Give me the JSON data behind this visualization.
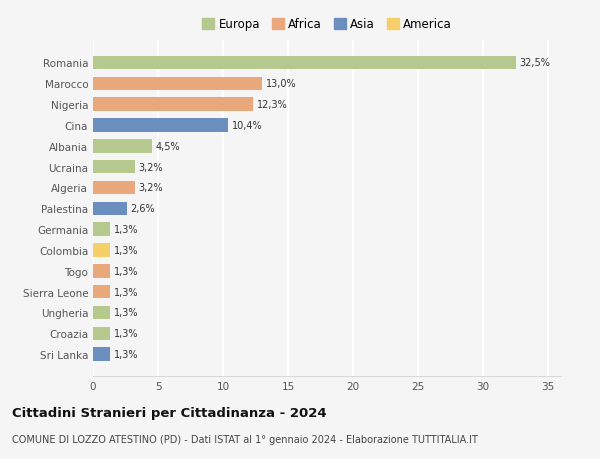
{
  "categories": [
    "Romania",
    "Marocco",
    "Nigeria",
    "Cina",
    "Albania",
    "Ucraina",
    "Algeria",
    "Palestina",
    "Germania",
    "Colombia",
    "Togo",
    "Sierra Leone",
    "Ungheria",
    "Croazia",
    "Sri Lanka"
  ],
  "values": [
    32.5,
    13.0,
    12.3,
    10.4,
    4.5,
    3.2,
    3.2,
    2.6,
    1.3,
    1.3,
    1.3,
    1.3,
    1.3,
    1.3,
    1.3
  ],
  "labels": [
    "32,5%",
    "13,0%",
    "12,3%",
    "10,4%",
    "4,5%",
    "3,2%",
    "3,2%",
    "2,6%",
    "1,3%",
    "1,3%",
    "1,3%",
    "1,3%",
    "1,3%",
    "1,3%",
    "1,3%"
  ],
  "continents": [
    "Europa",
    "Africa",
    "Africa",
    "Asia",
    "Europa",
    "Europa",
    "Africa",
    "Asia",
    "Europa",
    "America",
    "Africa",
    "Africa",
    "Europa",
    "Europa",
    "Asia"
  ],
  "continent_colors": {
    "Europa": "#b5c98e",
    "Africa": "#e8a87c",
    "Asia": "#6a8fbf",
    "America": "#f5d06a"
  },
  "legend_order": [
    "Europa",
    "Africa",
    "Asia",
    "America"
  ],
  "title": "Cittadini Stranieri per Cittadinanza - 2024",
  "subtitle": "COMUNE DI LOZZO ATESTINO (PD) - Dati ISTAT al 1° gennaio 2024 - Elaborazione TUTTITALIA.IT",
  "xlim": [
    0,
    36
  ],
  "xticks": [
    0,
    5,
    10,
    15,
    20,
    25,
    30,
    35
  ],
  "bg_color": "#f5f5f5",
  "grid_color": "#ffffff",
  "bar_height": 0.65,
  "title_fontsize": 9.5,
  "subtitle_fontsize": 7.0,
  "label_fontsize": 7.0,
  "tick_fontsize": 7.5,
  "legend_fontsize": 8.5
}
